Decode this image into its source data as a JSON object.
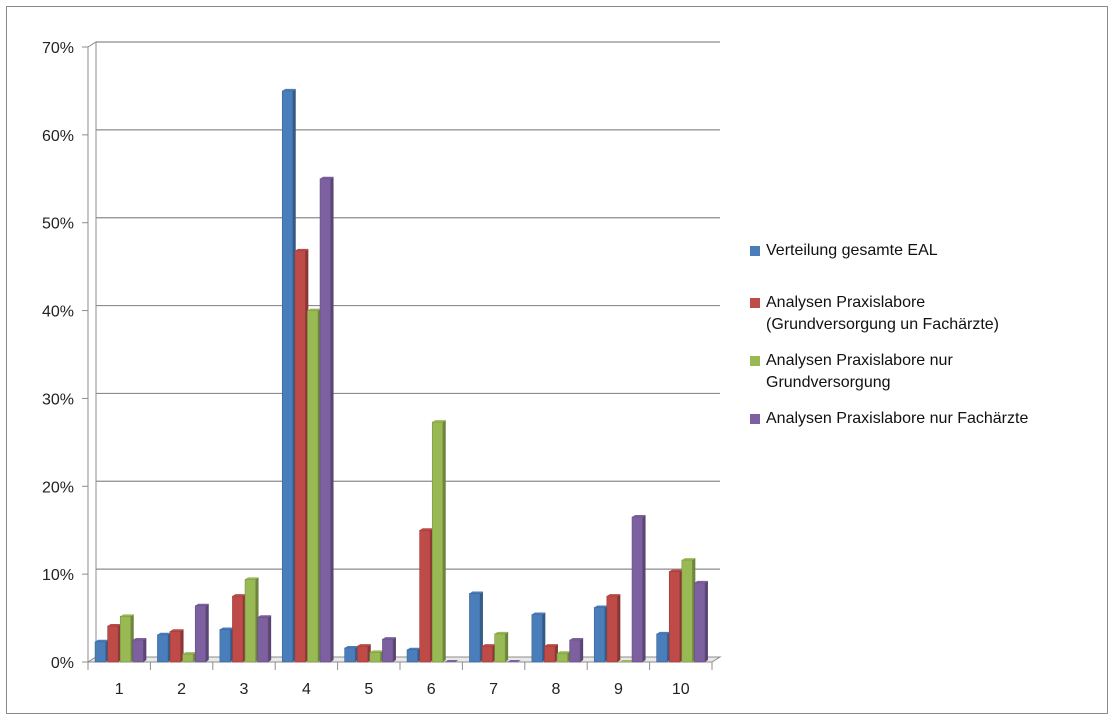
{
  "chart_data": {
    "type": "bar",
    "categories": [
      "1",
      "2",
      "3",
      "4",
      "5",
      "6",
      "7",
      "8",
      "9",
      "10"
    ],
    "series": [
      {
        "name": "Verteilung gesamte EAL",
        "color": "#4a7ebb",
        "values": [
          2.3,
          3.1,
          3.7,
          65.0,
          1.6,
          1.4,
          7.8,
          5.4,
          6.2,
          3.2
        ]
      },
      {
        "name": "Analysen Praxislabore\n(Grundversorgung un Fachärzte)",
        "color": "#be4b48",
        "values": [
          4.1,
          3.5,
          7.5,
          46.8,
          1.8,
          15.0,
          1.8,
          1.8,
          7.5,
          10.3
        ]
      },
      {
        "name": "Analysen Praxislabore nur\nGrundversorgung",
        "color": "#98b954",
        "values": [
          5.2,
          0.9,
          9.4,
          40.0,
          1.1,
          27.3,
          3.2,
          1.0,
          0.0,
          11.6
        ]
      },
      {
        "name": "Analysen Praxislabore nur Fachärzte",
        "color": "#7d60a0",
        "values": [
          2.5,
          6.4,
          5.1,
          55.0,
          2.6,
          0.0,
          0.0,
          2.5,
          16.5,
          9.0
        ]
      }
    ],
    "ylim": [
      0,
      70
    ],
    "yticks": [
      "0%",
      "10%",
      "20%",
      "30%",
      "40%",
      "50%",
      "60%",
      "70%"
    ],
    "grid": true,
    "legend_position": "right"
  }
}
